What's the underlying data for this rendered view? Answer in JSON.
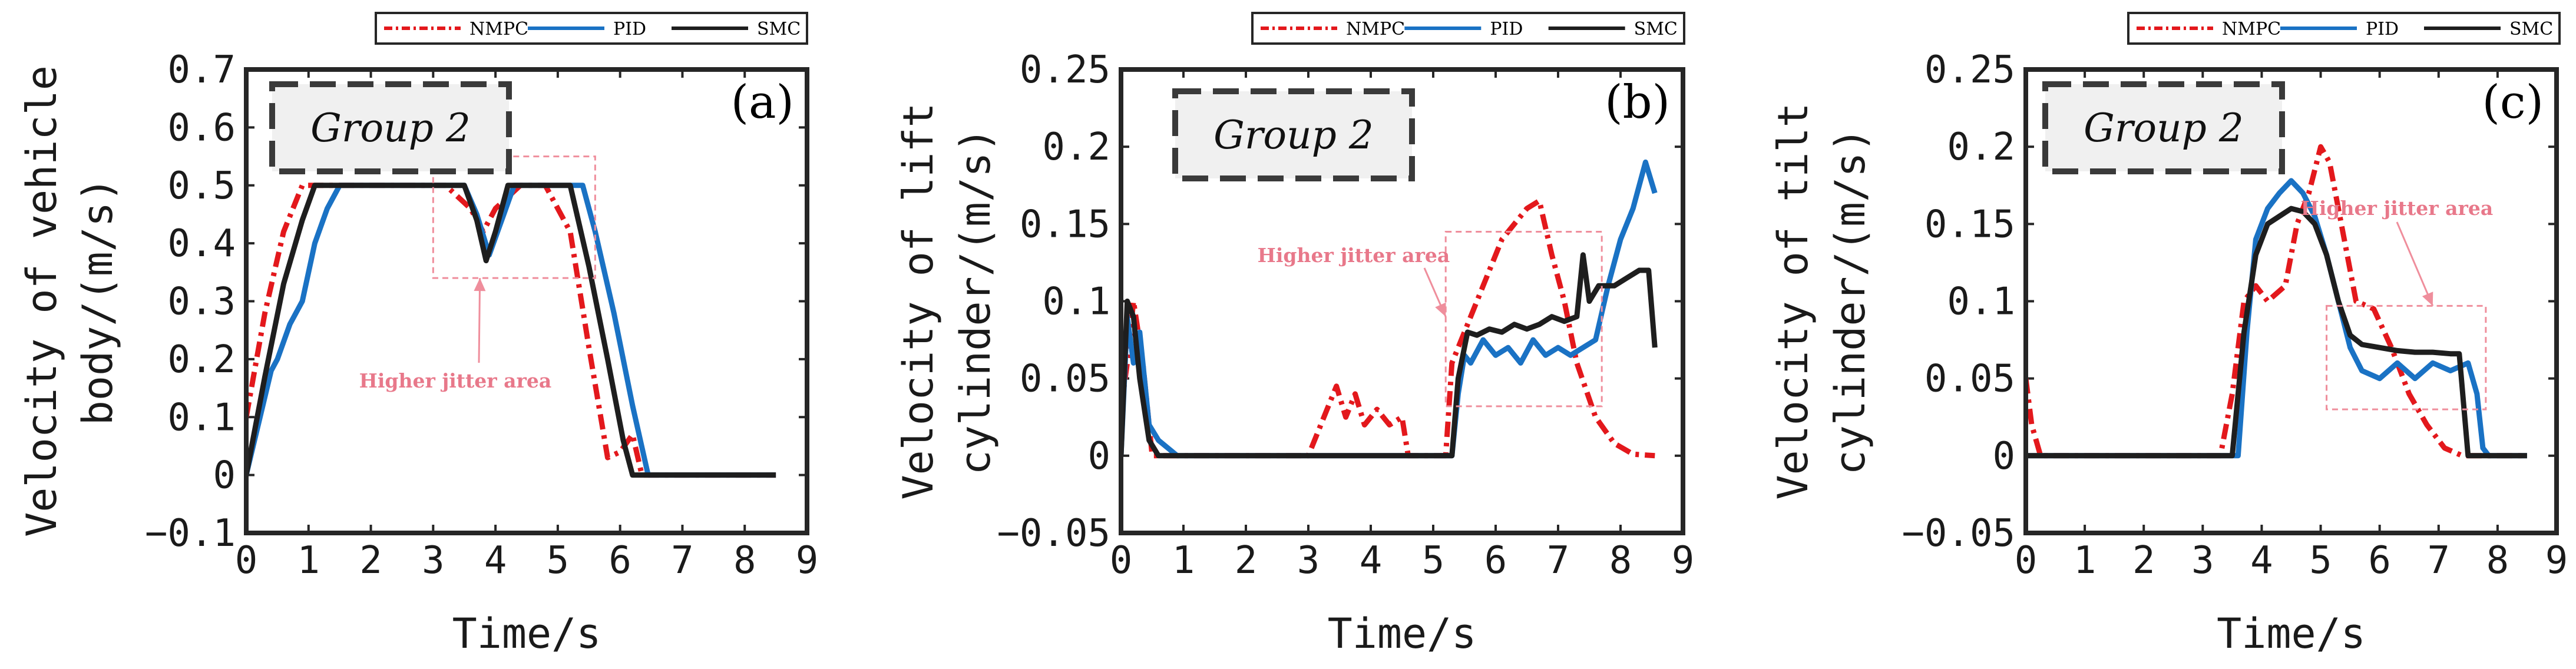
{
  "chart_data": [
    {
      "type": "line",
      "panel_label": "(a)",
      "group_label": "Group 2",
      "annotation": "Higher jitter area",
      "xlabel": "Time/s",
      "ylabel": [
        "Velocity of vehicle",
        "body/(m/s)"
      ],
      "xlim": [
        0,
        9
      ],
      "ylim": [
        -0.1,
        0.7
      ],
      "xticks": [
        0,
        1,
        2,
        3,
        4,
        5,
        6,
        7,
        8,
        9
      ],
      "yticks": [
        -0.1,
        0,
        0.1,
        0.2,
        0.3,
        0.4,
        0.5,
        0.6,
        0.7
      ],
      "ytick_labels": [
        "−0.1",
        "0",
        "0.1",
        "0.2",
        "0.3",
        "0.4",
        "0.5",
        "0.6",
        "0.7"
      ],
      "jitter_box": {
        "x0": 3.0,
        "x1": 5.6,
        "y0": 0.34,
        "y1": 0.55
      },
      "series": [
        {
          "name": "NMPC",
          "color": "#e3181c",
          "dash": "dashdot",
          "x": [
            0,
            0.3,
            0.6,
            0.9,
            1.0,
            3.2,
            3.6,
            3.8,
            4.0,
            4.4,
            4.8,
            5.2,
            5.5,
            5.8,
            6.0,
            6.2,
            6.35,
            8.5
          ],
          "y": [
            0.1,
            0.28,
            0.42,
            0.5,
            0.5,
            0.5,
            0.46,
            0.42,
            0.46,
            0.5,
            0.5,
            0.42,
            0.22,
            0.03,
            0.04,
            0.07,
            0.0,
            0.0
          ]
        },
        {
          "name": "PID",
          "color": "#1a72c4",
          "dash": "solid",
          "x": [
            0,
            0.4,
            0.5,
            0.7,
            0.9,
            1.1,
            1.3,
            1.5,
            3.5,
            3.7,
            3.9,
            4.1,
            4.3,
            5.4,
            5.6,
            5.9,
            6.2,
            6.45,
            8.5
          ],
          "y": [
            0.0,
            0.18,
            0.2,
            0.26,
            0.3,
            0.4,
            0.46,
            0.5,
            0.5,
            0.45,
            0.38,
            0.44,
            0.5,
            0.5,
            0.42,
            0.28,
            0.12,
            0.0,
            0.0
          ]
        },
        {
          "name": "SMC",
          "color": "#1e1e1e",
          "dash": "solid",
          "x": [
            0,
            0.3,
            0.6,
            0.9,
            1.1,
            1.3,
            3.5,
            3.7,
            3.85,
            4.0,
            4.2,
            5.2,
            5.5,
            5.8,
            6.05,
            6.2,
            8.5
          ],
          "y": [
            0.0,
            0.17,
            0.33,
            0.44,
            0.5,
            0.5,
            0.5,
            0.44,
            0.37,
            0.42,
            0.5,
            0.5,
            0.36,
            0.2,
            0.06,
            0.0,
            0.0
          ]
        }
      ]
    },
    {
      "type": "line",
      "panel_label": "(b)",
      "group_label": "Group 2",
      "annotation": "Higher jitter area",
      "xlabel": "Time/s",
      "ylabel": [
        "Velocity of lift",
        "cylinder/(m/s)"
      ],
      "xlim": [
        0,
        9
      ],
      "ylim": [
        -0.05,
        0.25
      ],
      "xticks": [
        0,
        1,
        2,
        3,
        4,
        5,
        6,
        7,
        8,
        9
      ],
      "yticks": [
        -0.05,
        0,
        0.05,
        0.1,
        0.15,
        0.2,
        0.25
      ],
      "ytick_labels": [
        "−0.05",
        "0",
        "0.05",
        "0.1",
        "0.15",
        "0.2",
        "0.25"
      ],
      "jitter_box": {
        "x0": 5.2,
        "x1": 7.7,
        "y0": 0.032,
        "y1": 0.145
      },
      "series": [
        {
          "name": "NMPC",
          "color": "#e3181c",
          "dash": "dashdot",
          "x": [
            0,
            0.1,
            0.2,
            0.35,
            0.5,
            3.0,
            3.15,
            3.3,
            3.45,
            3.6,
            3.75,
            3.9,
            4.1,
            4.3,
            4.5,
            4.6,
            5.2,
            5.3,
            5.5,
            5.7,
            5.9,
            6.1,
            6.3,
            6.5,
            6.7,
            6.9,
            7.1,
            7.3,
            7.6,
            7.9,
            8.2,
            8.55
          ],
          "y": [
            0.03,
            0.06,
            0.1,
            0.06,
            0.0,
            0.0,
            0.015,
            0.03,
            0.045,
            0.025,
            0.04,
            0.02,
            0.03,
            0.02,
            0.025,
            0.0,
            0.0,
            0.06,
            0.08,
            0.1,
            0.12,
            0.14,
            0.15,
            0.16,
            0.165,
            0.13,
            0.1,
            0.06,
            0.025,
            0.008,
            0.001,
            0.0
          ]
        },
        {
          "name": "PID",
          "color": "#1a72c4",
          "dash": "solid",
          "x": [
            0,
            0.1,
            0.2,
            0.3,
            0.45,
            0.6,
            0.75,
            0.9,
            5.3,
            5.4,
            5.5,
            5.6,
            5.8,
            6.0,
            6.2,
            6.4,
            6.6,
            6.8,
            7.0,
            7.2,
            7.4,
            7.6,
            7.8,
            8.0,
            8.2,
            8.4,
            8.55
          ],
          "y": [
            0.0,
            0.09,
            0.06,
            0.08,
            0.02,
            0.01,
            0.005,
            0.0,
            0.0,
            0.04,
            0.065,
            0.06,
            0.075,
            0.065,
            0.07,
            0.06,
            0.075,
            0.065,
            0.07,
            0.065,
            0.07,
            0.075,
            0.11,
            0.14,
            0.16,
            0.19,
            0.17
          ]
        },
        {
          "name": "SMC",
          "color": "#1e1e1e",
          "dash": "solid",
          "x": [
            0,
            0.1,
            0.2,
            0.3,
            0.45,
            0.6,
            5.3,
            5.4,
            5.55,
            5.7,
            5.9,
            6.1,
            6.3,
            6.5,
            6.7,
            6.9,
            7.1,
            7.3,
            7.4,
            7.5,
            7.65,
            7.9,
            8.1,
            8.3,
            8.45,
            8.55
          ],
          "y": [
            0.0,
            0.1,
            0.09,
            0.05,
            0.01,
            0.0,
            0.0,
            0.05,
            0.08,
            0.078,
            0.082,
            0.08,
            0.085,
            0.082,
            0.085,
            0.09,
            0.087,
            0.09,
            0.13,
            0.1,
            0.11,
            0.11,
            0.115,
            0.12,
            0.12,
            0.07
          ]
        }
      ]
    },
    {
      "type": "line",
      "panel_label": "(c)",
      "group_label": "Group 2",
      "annotation": "Higher jitter area",
      "xlabel": "Time/s",
      "ylabel": [
        "Velocity of tilt",
        "cylinder/(m/s)"
      ],
      "xlim": [
        0,
        9
      ],
      "ylim": [
        -0.05,
        0.25
      ],
      "xticks": [
        0,
        1,
        2,
        3,
        4,
        5,
        6,
        7,
        8,
        9
      ],
      "yticks": [
        -0.05,
        0,
        0.05,
        0.1,
        0.15,
        0.2,
        0.25
      ],
      "ytick_labels": [
        "−0.05",
        "0",
        "0.05",
        "0.1",
        "0.15",
        "0.2",
        "0.25"
      ],
      "jitter_box": {
        "x0": 5.1,
        "x1": 7.8,
        "y0": 0.03,
        "y1": 0.097
      },
      "series": [
        {
          "name": "NMPC",
          "color": "#e3181c",
          "dash": "dashdot",
          "x": [
            0,
            0.1,
            0.25,
            3.3,
            3.5,
            3.7,
            3.9,
            4.1,
            4.4,
            4.6,
            4.8,
            5.0,
            5.15,
            5.35,
            5.6,
            5.9,
            6.2,
            6.5,
            6.8,
            7.1,
            7.4,
            8.5
          ],
          "y": [
            0.05,
            0.02,
            0.0,
            0.0,
            0.04,
            0.1,
            0.11,
            0.1,
            0.11,
            0.15,
            0.17,
            0.2,
            0.19,
            0.15,
            0.1,
            0.095,
            0.07,
            0.04,
            0.02,
            0.005,
            0.0,
            0.0
          ]
        },
        {
          "name": "PID",
          "color": "#1a72c4",
          "dash": "solid",
          "x": [
            0,
            3.6,
            3.75,
            3.9,
            4.1,
            4.3,
            4.5,
            4.7,
            4.9,
            5.1,
            5.3,
            5.5,
            5.7,
            6.0,
            6.3,
            6.6,
            6.9,
            7.2,
            7.5,
            7.65,
            7.75,
            7.85,
            8.5
          ],
          "y": [
            0.0,
            0.0,
            0.08,
            0.14,
            0.16,
            0.17,
            0.178,
            0.17,
            0.155,
            0.13,
            0.1,
            0.07,
            0.055,
            0.05,
            0.06,
            0.05,
            0.06,
            0.055,
            0.06,
            0.04,
            0.005,
            0.0,
            0.0
          ]
        },
        {
          "name": "SMC",
          "color": "#1e1e1e",
          "dash": "solid",
          "x": [
            0,
            3.5,
            3.7,
            3.9,
            4.1,
            4.3,
            4.5,
            4.7,
            4.9,
            5.1,
            5.3,
            5.5,
            5.7,
            6.0,
            6.3,
            6.6,
            6.9,
            7.2,
            7.35,
            7.5,
            8.5
          ],
          "y": [
            0.0,
            0.0,
            0.08,
            0.13,
            0.15,
            0.155,
            0.16,
            0.158,
            0.15,
            0.13,
            0.1,
            0.078,
            0.072,
            0.07,
            0.068,
            0.067,
            0.067,
            0.066,
            0.066,
            0.0,
            0.0
          ]
        }
      ]
    }
  ]
}
